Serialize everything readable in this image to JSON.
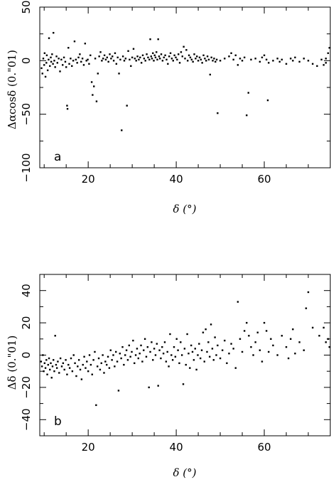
{
  "chart_data": [
    {
      "type": "scatter",
      "panel_label": "a",
      "ylabel": "Δαcosδ (0.\"01)",
      "xlabel": "δ (°)",
      "xlim": [
        9,
        75
      ],
      "ylim": [
        -100,
        50
      ],
      "xticks": [
        20,
        40,
        60
      ],
      "yticks": [
        50,
        0,
        -50,
        -100
      ],
      "yticklabels": [
        "50",
        "0",
        "−50",
        "−100"
      ],
      "points": [
        [
          9.4,
          -7
        ],
        [
          9.6,
          -12
        ],
        [
          9.8,
          2
        ],
        [
          10.0,
          -4
        ],
        [
          10.1,
          7
        ],
        [
          10.3,
          -15
        ],
        [
          10.5,
          -2
        ],
        [
          10.6,
          5
        ],
        [
          10.8,
          -9
        ],
        [
          11.0,
          1
        ],
        [
          11.1,
          21
        ],
        [
          11.3,
          -5
        ],
        [
          11.5,
          3
        ],
        [
          11.6,
          -1
        ],
        [
          11.8,
          6
        ],
        [
          12.0,
          -3
        ],
        [
          12.1,
          26
        ],
        [
          12.3,
          0
        ],
        [
          12.5,
          -6
        ],
        [
          12.8,
          4
        ],
        [
          13.0,
          -2
        ],
        [
          13.3,
          2
        ],
        [
          13.6,
          -10
        ],
        [
          13.9,
          1
        ],
        [
          14.2,
          -4
        ],
        [
          14.5,
          3
        ],
        [
          14.8,
          -1
        ],
        [
          15.0,
          -6
        ],
        [
          15.2,
          -42
        ],
        [
          15.3,
          -45
        ],
        [
          15.5,
          12
        ],
        [
          15.7,
          -3
        ],
        [
          16.0,
          2
        ],
        [
          16.3,
          -5
        ],
        [
          16.6,
          0
        ],
        [
          16.9,
          18
        ],
        [
          17.2,
          1
        ],
        [
          17.5,
          -2
        ],
        [
          17.8,
          3
        ],
        [
          18.1,
          6
        ],
        [
          18.4,
          -1
        ],
        [
          18.7,
          2
        ],
        [
          19.0,
          -4
        ],
        [
          19.3,
          16
        ],
        [
          19.6,
          0
        ],
        [
          19.9,
          1
        ],
        [
          20.2,
          -3
        ],
        [
          20.5,
          5
        ],
        [
          20.8,
          -20
        ],
        [
          21.0,
          -32
        ],
        [
          21.3,
          -24
        ],
        [
          21.6,
          2
        ],
        [
          21.9,
          -38
        ],
        [
          22.2,
          -12
        ],
        [
          22.5,
          4
        ],
        [
          22.8,
          8
        ],
        [
          23.1,
          0
        ],
        [
          23.4,
          2
        ],
        [
          23.7,
          5
        ],
        [
          24.0,
          1
        ],
        [
          24.3,
          3
        ],
        [
          24.6,
          -1
        ],
        [
          24.9,
          6
        ],
        [
          25.2,
          2
        ],
        [
          25.5,
          4
        ],
        [
          25.8,
          0
        ],
        [
          26.1,
          7
        ],
        [
          26.4,
          -3
        ],
        [
          26.7,
          3
        ],
        [
          27.0,
          -12
        ],
        [
          27.3,
          1
        ],
        [
          27.6,
          -65
        ],
        [
          27.9,
          4
        ],
        [
          28.2,
          0
        ],
        [
          28.5,
          2
        ],
        [
          28.8,
          -42
        ],
        [
          29.1,
          9
        ],
        [
          29.4,
          1
        ],
        [
          29.7,
          -5
        ],
        [
          30.0,
          3
        ],
        [
          30.3,
          11
        ],
        [
          30.6,
          2
        ],
        [
          30.9,
          0
        ],
        [
          31.2,
          4
        ],
        [
          31.5,
          1
        ],
        [
          31.8,
          3
        ],
        [
          32.1,
          -2
        ],
        [
          32.4,
          5
        ],
        [
          32.7,
          2
        ],
        [
          33.0,
          0
        ],
        [
          33.3,
          6
        ],
        [
          33.6,
          3
        ],
        [
          33.9,
          1
        ],
        [
          34.1,
          20
        ],
        [
          34.3,
          4
        ],
        [
          34.5,
          2
        ],
        [
          34.7,
          7
        ],
        [
          34.9,
          0
        ],
        [
          35.1,
          5
        ],
        [
          35.3,
          3
        ],
        [
          35.5,
          8
        ],
        [
          35.7,
          1
        ],
        [
          35.9,
          20
        ],
        [
          36.1,
          4
        ],
        [
          36.3,
          2
        ],
        [
          36.6,
          6
        ],
        [
          36.9,
          0
        ],
        [
          37.2,
          3
        ],
        [
          37.5,
          5
        ],
        [
          37.8,
          1
        ],
        [
          38.1,
          -3
        ],
        [
          38.4,
          4
        ],
        [
          38.7,
          7
        ],
        [
          39.0,
          2
        ],
        [
          39.3,
          0
        ],
        [
          39.6,
          5
        ],
        [
          39.9,
          3
        ],
        [
          40.2,
          1
        ],
        [
          40.5,
          6
        ],
        [
          40.8,
          -2
        ],
        [
          41.1,
          8
        ],
        [
          41.4,
          4
        ],
        [
          41.7,
          13
        ],
        [
          42.0,
          2
        ],
        [
          42.3,
          10
        ],
        [
          42.6,
          0
        ],
        [
          42.9,
          5
        ],
        [
          43.2,
          3
        ],
        [
          43.5,
          1
        ],
        [
          43.8,
          -1
        ],
        [
          44.1,
          6
        ],
        [
          44.4,
          2
        ],
        [
          44.7,
          4
        ],
        [
          45.0,
          0
        ],
        [
          45.3,
          3
        ],
        [
          45.6,
          1
        ],
        [
          45.9,
          -2
        ],
        [
          46.2,
          5
        ],
        [
          46.5,
          2
        ],
        [
          46.8,
          0
        ],
        [
          47.1,
          4
        ],
        [
          47.4,
          1
        ],
        [
          47.7,
          -13
        ],
        [
          48.0,
          3
        ],
        [
          48.3,
          0
        ],
        [
          48.6,
          2
        ],
        [
          48.9,
          -1
        ],
        [
          49.2,
          1
        ],
        [
          49.4,
          -49
        ],
        [
          50.0,
          0
        ],
        [
          51.0,
          2
        ],
        [
          52.0,
          4
        ],
        [
          52.5,
          7
        ],
        [
          53.0,
          1
        ],
        [
          53.5,
          5
        ],
        [
          54.0,
          -4
        ],
        [
          54.5,
          2
        ],
        [
          55.0,
          0
        ],
        [
          55.5,
          3
        ],
        [
          56.0,
          -51
        ],
        [
          56.4,
          -30
        ],
        [
          57.0,
          1
        ],
        [
          58.0,
          2
        ],
        [
          59.0,
          -1
        ],
        [
          59.5,
          3
        ],
        [
          60.0,
          5
        ],
        [
          60.5,
          1
        ],
        [
          60.8,
          -37
        ],
        [
          61.0,
          -2
        ],
        [
          62.0,
          0
        ],
        [
          63.0,
          2
        ],
        [
          63.5,
          -1
        ],
        [
          64.0,
          1
        ],
        [
          65.0,
          -3
        ],
        [
          66.0,
          2
        ],
        [
          66.5,
          0
        ],
        [
          67.0,
          3
        ],
        [
          68.0,
          -1
        ],
        [
          69.0,
          2
        ],
        [
          70.0,
          0
        ],
        [
          71.0,
          -3
        ],
        [
          72.0,
          -5
        ],
        [
          73.0,
          1
        ],
        [
          73.5,
          -4
        ],
        [
          74.0,
          2
        ],
        [
          74.5,
          7
        ],
        [
          74.8,
          12
        ],
        [
          74.0,
          -2
        ]
      ]
    },
    {
      "type": "scatter",
      "panel_label": "b",
      "ylabel": "Δδ (0.\"01)",
      "xlabel": "δ (°)",
      "xlim": [
        9,
        75
      ],
      "ylim": [
        -50,
        50
      ],
      "xticks": [
        20,
        40,
        60
      ],
      "yticks": [
        40,
        20,
        0,
        -20,
        -40
      ],
      "yticklabels": [
        "40",
        "20",
        "0",
        "−20",
        "−40"
      ],
      "points": [
        [
          9.3,
          -4
        ],
        [
          9.5,
          -7
        ],
        [
          9.7,
          0
        ],
        [
          9.9,
          -10
        ],
        [
          10.1,
          -5
        ],
        [
          10.3,
          -8
        ],
        [
          10.5,
          -3
        ],
        [
          10.7,
          -12
        ],
        [
          10.9,
          -6
        ],
        [
          11.1,
          -2
        ],
        [
          11.3,
          -9
        ],
        [
          11.5,
          -5
        ],
        [
          11.7,
          -14
        ],
        [
          11.9,
          -7
        ],
        [
          12.1,
          -3
        ],
        [
          12.3,
          -10
        ],
        [
          12.5,
          12
        ],
        [
          12.7,
          -6
        ],
        [
          12.9,
          -8
        ],
        [
          13.1,
          -4
        ],
        [
          13.4,
          -11
        ],
        [
          13.7,
          -2
        ],
        [
          14.0,
          -7
        ],
        [
          14.3,
          -5
        ],
        [
          14.6,
          -9
        ],
        [
          14.9,
          -3
        ],
        [
          15.2,
          -12
        ],
        [
          15.5,
          -6
        ],
        [
          15.8,
          -8
        ],
        [
          16.1,
          -2
        ],
        [
          16.4,
          -10
        ],
        [
          16.7,
          0
        ],
        [
          17.0,
          -5
        ],
        [
          17.3,
          -13
        ],
        [
          17.6,
          -7
        ],
        [
          17.9,
          -3
        ],
        [
          18.2,
          -9
        ],
        [
          18.5,
          -15
        ],
        [
          18.8,
          -6
        ],
        [
          19.1,
          -1
        ],
        [
          19.4,
          -8
        ],
        [
          19.7,
          -4
        ],
        [
          20.0,
          -10
        ],
        [
          20.3,
          0
        ],
        [
          20.6,
          -6
        ],
        [
          20.9,
          -12
        ],
        [
          21.2,
          -3
        ],
        [
          21.5,
          2
        ],
        [
          21.8,
          -31
        ],
        [
          22.1,
          -7
        ],
        [
          22.4,
          -2
        ],
        [
          22.7,
          -9
        ],
        [
          23.0,
          -5
        ],
        [
          23.3,
          0
        ],
        [
          23.6,
          -11
        ],
        [
          23.9,
          -4
        ],
        [
          24.2,
          -6
        ],
        [
          24.5,
          -1
        ],
        [
          24.8,
          -8
        ],
        [
          25.1,
          3
        ],
        [
          25.4,
          -3
        ],
        [
          25.7,
          0
        ],
        [
          26.0,
          -7
        ],
        [
          26.3,
          2
        ],
        [
          26.6,
          -4
        ],
        [
          26.9,
          -22
        ],
        [
          27.2,
          1
        ],
        [
          27.5,
          -2
        ],
        [
          27.8,
          5
        ],
        [
          28.1,
          -6
        ],
        [
          28.4,
          0
        ],
        [
          28.7,
          3
        ],
        [
          29.0,
          -3
        ],
        [
          29.3,
          6
        ],
        [
          29.6,
          -1
        ],
        [
          29.9,
          2
        ],
        [
          30.2,
          9
        ],
        [
          30.5,
          -5
        ],
        [
          30.8,
          0
        ],
        [
          31.1,
          4
        ],
        [
          31.4,
          -2
        ],
        [
          31.7,
          1
        ],
        [
          32.0,
          6
        ],
        [
          32.3,
          -4
        ],
        [
          32.6,
          3
        ],
        [
          32.9,
          10
        ],
        [
          33.2,
          -1
        ],
        [
          33.5,
          5
        ],
        [
          33.8,
          -20
        ],
        [
          34.1,
          2
        ],
        [
          34.4,
          8
        ],
        [
          34.7,
          -3
        ],
        [
          35.0,
          4
        ],
        [
          35.3,
          0
        ],
        [
          35.6,
          7
        ],
        [
          35.9,
          -19
        ],
        [
          36.2,
          3
        ],
        [
          36.5,
          -2
        ],
        [
          36.8,
          5
        ],
        [
          37.1,
          1
        ],
        [
          37.4,
          8
        ],
        [
          37.7,
          -4
        ],
        [
          38.0,
          2
        ],
        [
          38.3,
          -7
        ],
        [
          38.6,
          13
        ],
        [
          38.9,
          0
        ],
        [
          39.2,
          -3
        ],
        [
          39.5,
          5
        ],
        [
          39.8,
          -1
        ],
        [
          40.1,
          10
        ],
        [
          40.4,
          3
        ],
        [
          40.7,
          -5
        ],
        [
          41.0,
          8
        ],
        [
          41.3,
          0
        ],
        [
          41.6,
          -18
        ],
        [
          41.9,
          4
        ],
        [
          42.2,
          -6
        ],
        [
          42.5,
          13
        ],
        [
          42.8,
          1
        ],
        [
          43.1,
          -8
        ],
        [
          43.4,
          6
        ],
        [
          43.7,
          2
        ],
        [
          44.0,
          -3
        ],
        [
          44.3,
          4
        ],
        [
          44.6,
          -9
        ],
        [
          44.9,
          0
        ],
        [
          45.2,
          7
        ],
        [
          45.5,
          -2
        ],
        [
          45.8,
          3
        ],
        [
          46.1,
          14
        ],
        [
          46.4,
          -4
        ],
        [
          46.7,
          16
        ],
        [
          47.0,
          2
        ],
        [
          47.3,
          8
        ],
        [
          47.6,
          -1
        ],
        [
          47.9,
          19
        ],
        [
          48.2,
          4
        ],
        [
          48.5,
          -3
        ],
        [
          48.8,
          11
        ],
        [
          49.1,
          0
        ],
        [
          49.4,
          6
        ],
        [
          50.0,
          -2
        ],
        [
          50.5,
          3
        ],
        [
          51.0,
          9
        ],
        [
          51.5,
          -5
        ],
        [
          52.0,
          1
        ],
        [
          52.5,
          7
        ],
        [
          53.0,
          4
        ],
        [
          53.5,
          -8
        ],
        [
          54.0,
          33
        ],
        [
          54.5,
          10
        ],
        [
          55.0,
          2
        ],
        [
          55.5,
          15
        ],
        [
          56.0,
          20
        ],
        [
          56.5,
          12
        ],
        [
          57.0,
          5
        ],
        [
          57.5,
          0
        ],
        [
          58.0,
          8
        ],
        [
          58.5,
          14
        ],
        [
          59.0,
          3
        ],
        [
          59.5,
          -4
        ],
        [
          60.0,
          20
        ],
        [
          60.5,
          15
        ],
        [
          61.0,
          2
        ],
        [
          61.5,
          10
        ],
        [
          62.0,
          6
        ],
        [
          63.0,
          0
        ],
        [
          64.0,
          12
        ],
        [
          65.0,
          5
        ],
        [
          65.5,
          -2
        ],
        [
          66.0,
          10
        ],
        [
          66.5,
          16
        ],
        [
          67.0,
          1
        ],
        [
          68.0,
          8
        ],
        [
          69.0,
          3
        ],
        [
          69.5,
          29
        ],
        [
          70.0,
          39
        ],
        [
          71.0,
          17
        ],
        [
          72.5,
          12
        ],
        [
          73.5,
          17
        ],
        [
          74.0,
          8
        ],
        [
          74.5,
          10
        ],
        [
          74.8,
          5
        ]
      ]
    }
  ]
}
